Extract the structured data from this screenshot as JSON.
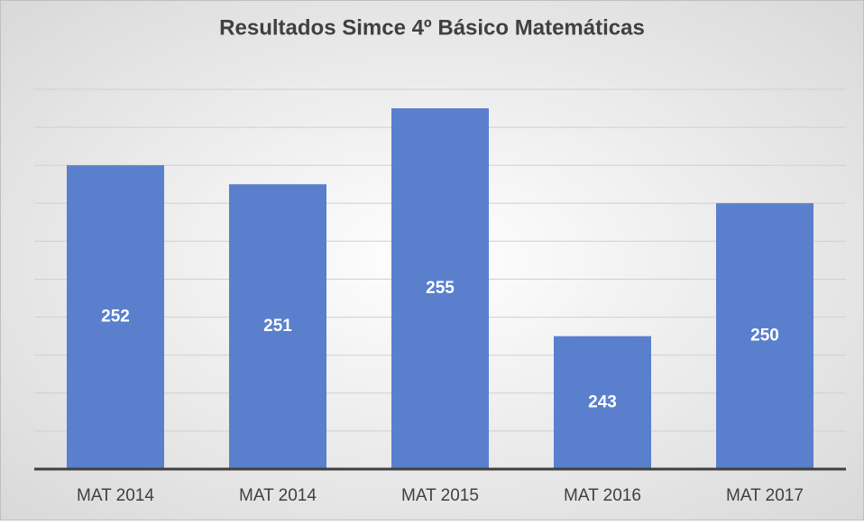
{
  "chart_data": {
    "type": "bar",
    "title": "Resultados Simce 4º Básico Matemáticas",
    "categories": [
      "MAT 2014",
      "MAT 2014",
      "MAT 2015",
      "MAT 2016",
      "MAT 2017"
    ],
    "values": [
      252,
      251,
      255,
      243,
      250
    ],
    "color": "#5a7fcd",
    "ylim": [
      236,
      256
    ],
    "yticks": [
      236,
      238,
      240,
      242,
      244,
      246,
      248,
      250,
      252,
      254,
      256
    ],
    "grid": true
  }
}
